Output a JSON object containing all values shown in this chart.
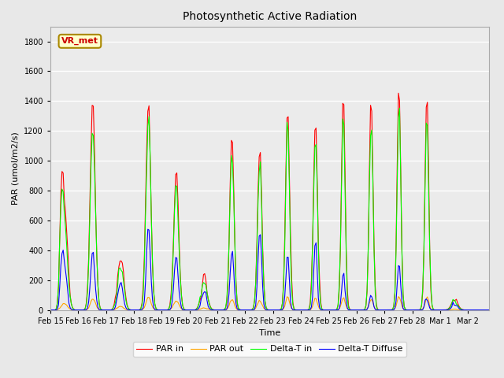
{
  "title": "Photosynthetic Active Radiation",
  "ylabel": "PAR (umol/m2/s)",
  "xlabel": "Time",
  "annotation_text": "VR_met",
  "annotation_bg": "#ffffcc",
  "annotation_border": "#aa8800",
  "annotation_text_color": "#cc0000",
  "legend_labels": [
    "PAR in",
    "PAR out",
    "Delta-T in",
    "Delta-T Diffuse"
  ],
  "legend_colors": [
    "red",
    "orange",
    "lime",
    "blue"
  ],
  "ylim": [
    0,
    1900
  ],
  "yticks": [
    0,
    200,
    400,
    600,
    800,
    1000,
    1200,
    1400,
    1600,
    1800
  ],
  "background_color": "#e8e8e8",
  "plot_bg": "#ebebeb",
  "grid_color": "#ffffff",
  "figwidth": 6.4,
  "figheight": 4.8,
  "dpi": 100
}
